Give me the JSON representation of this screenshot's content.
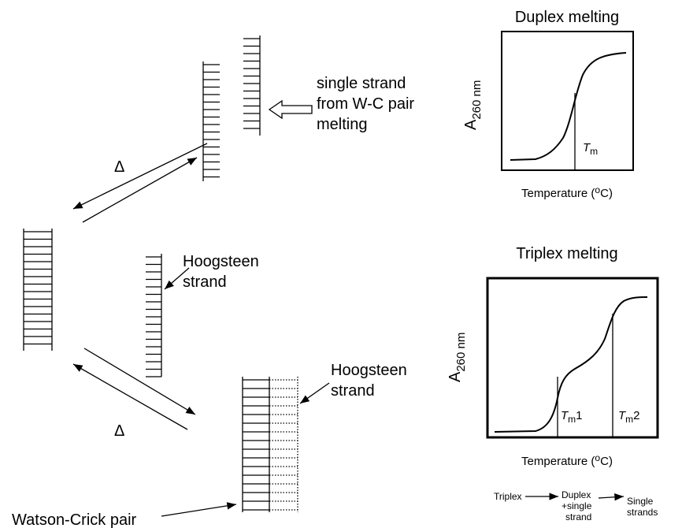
{
  "duplex_panel": {
    "title": "Duplex melting",
    "y_label": {
      "base": "A",
      "sub": "260 nm"
    },
    "marker": {
      "base": "T",
      "sub": "m"
    },
    "x_label": {
      "pre": "Temperature (",
      "sup": "o",
      "post": "C)"
    }
  },
  "triplex_panel": {
    "title": "Triplex melting",
    "y_label": {
      "base": "A",
      "sub": "260 nm"
    },
    "markers": [
      {
        "base": "T",
        "sub": "m",
        "suffix": "1"
      },
      {
        "base": "T",
        "sub": "m",
        "suffix": "2"
      }
    ],
    "x_label": {
      "pre": "Temperature (",
      "sup": "o",
      "post": "C)"
    }
  },
  "labels": {
    "single_strand": [
      "single strand",
      "from W-C pair",
      "melting"
    ],
    "delta_top": "Δ",
    "delta_bottom": "Δ",
    "hoogsteen_top": [
      "Hoogsteen",
      "strand"
    ],
    "hoogsteen_bottom": [
      "Hoogsteen",
      "strand"
    ],
    "watson_crick": "Watson-Crick pair"
  },
  "scheme": {
    "triplex": "Triplex",
    "duplex": [
      "Duplex",
      "+single",
      "strand"
    ],
    "single": [
      "Single",
      "strands"
    ]
  }
}
